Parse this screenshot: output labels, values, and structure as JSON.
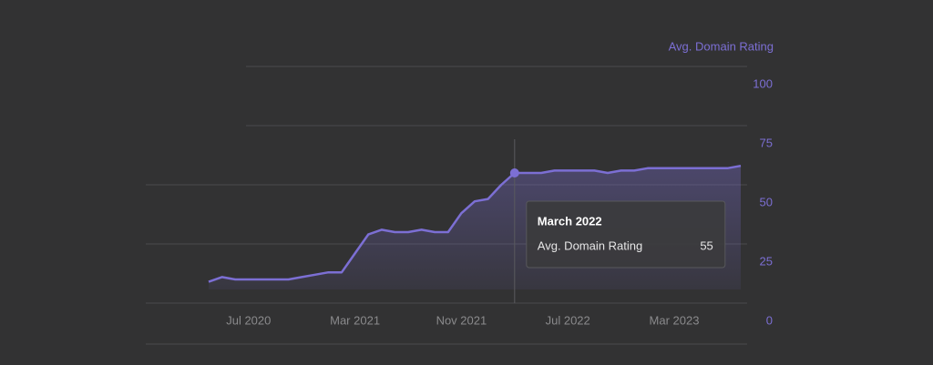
{
  "chart_data": {
    "type": "line",
    "ylabel": "Avg. Domain Rating",
    "x": [
      "2020-04",
      "2020-05",
      "2020-06",
      "2020-07",
      "2020-08",
      "2020-09",
      "2020-10",
      "2020-11",
      "2020-12",
      "2021-01",
      "2021-02",
      "2021-03",
      "2021-04",
      "2021-05",
      "2021-06",
      "2021-07",
      "2021-08",
      "2021-09",
      "2021-10",
      "2021-11",
      "2021-12",
      "2022-01",
      "2022-02",
      "2022-03",
      "2022-04",
      "2022-05",
      "2022-06",
      "2022-07",
      "2022-08",
      "2022-09",
      "2022-10",
      "2022-11",
      "2022-12",
      "2023-01",
      "2023-02",
      "2023-03",
      "2023-04",
      "2023-05",
      "2023-06",
      "2023-07",
      "2023-08"
    ],
    "series": [
      {
        "name": "Avg. Domain Rating",
        "color": "#7c6fd4",
        "values": [
          9,
          11,
          10,
          10,
          10,
          10,
          10,
          11,
          12,
          13,
          13,
          21,
          29,
          31,
          30,
          30,
          31,
          30,
          30,
          38,
          43,
          44,
          50,
          55,
          55,
          55,
          56,
          56,
          56,
          56,
          55,
          56,
          56,
          57,
          57,
          57,
          57,
          57,
          57,
          57,
          58
        ]
      }
    ],
    "xticks": [
      {
        "value": "2020-07",
        "label": "Jul 2020"
      },
      {
        "value": "2021-03",
        "label": "Mar 2021"
      },
      {
        "value": "2021-11",
        "label": "Nov 2021"
      },
      {
        "value": "2022-07",
        "label": "Jul 2022"
      },
      {
        "value": "2023-03",
        "label": "Mar 2023"
      }
    ],
    "ylim": [
      0,
      100
    ],
    "yticks": [
      0,
      25,
      50,
      75,
      100
    ],
    "grid": true,
    "tooltip": {
      "title": "March 2022",
      "x": "2022-03"
    }
  }
}
